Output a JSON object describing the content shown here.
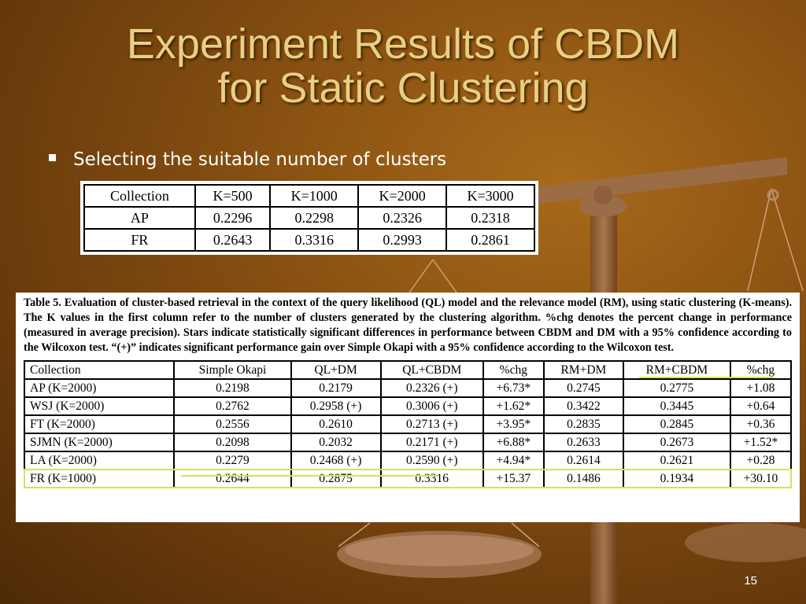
{
  "slide": {
    "title_line1": "Experiment Results of CBDM",
    "title_line2": "for Static Clustering",
    "bullet": "Selecting the suitable number of clusters",
    "page_number": "15"
  },
  "table1": {
    "headers": [
      "Collection",
      "K=500",
      "K=1000",
      "K=2000",
      "K=3000"
    ],
    "rows": [
      [
        "AP",
        "0.2296",
        "0.2298",
        "0.2326",
        "0.2318"
      ],
      [
        "FR",
        "0.2643",
        "0.3316",
        "0.2993",
        "0.2861"
      ]
    ]
  },
  "table2": {
    "caption": "Table 5. Evaluation of cluster-based retrieval in the context of the query likelihood (QL) model and the relevance model (RM), using static clustering (K-means). The K values in the first column refer to the number of clusters generated by the clustering algorithm. %chg denotes the percent change in performance (measured in average precision). Stars indicate statistically significant differences in performance between CBDM and DM with a 95% confidence according to the Wilcoxon test. “(+)” indicates significant performance gain over Simple Okapi with a 95% confidence according to the Wilcoxon test.",
    "headers": [
      "Collection",
      "Simple Okapi",
      "QL+DM",
      "QL+CBDM",
      "%chg",
      "RM+DM",
      "RM+CBDM",
      "%chg"
    ],
    "rows": [
      [
        "AP (K=2000)",
        "0.2198",
        "0.2179",
        "0.2326 (+)",
        "+6.73*",
        "0.2745",
        "0.2775",
        "+1.08"
      ],
      [
        "WSJ (K=2000)",
        "0.2762",
        "0.2958 (+)",
        "0.3006 (+)",
        "+1.62*",
        "0.3422",
        "0.3445",
        "+0.64"
      ],
      [
        "FT (K=2000)",
        "0.2556",
        "0.2610",
        "0.2713 (+)",
        "+3.95*",
        "0.2835",
        "0.2845",
        "+0.36"
      ],
      [
        "SJMN (K=2000)",
        "0.2098",
        "0.2032",
        "0.2171 (+)",
        "+6.88*",
        "0.2633",
        "0.2673",
        "+1.52*"
      ],
      [
        "LA (K=2000)",
        "0.2279",
        "0.2468 (+)",
        "0.2590 (+)",
        "+4.94*",
        "0.2614",
        "0.2621",
        "+0.28"
      ],
      [
        "FR (K=1000)",
        "0.2644",
        "0.2875",
        "0.3316",
        "+15.37",
        "0.1486",
        "0.1934",
        "+30.10"
      ]
    ]
  },
  "colors": {
    "title": "#e9cf84",
    "highlight": "#c9e85a"
  }
}
